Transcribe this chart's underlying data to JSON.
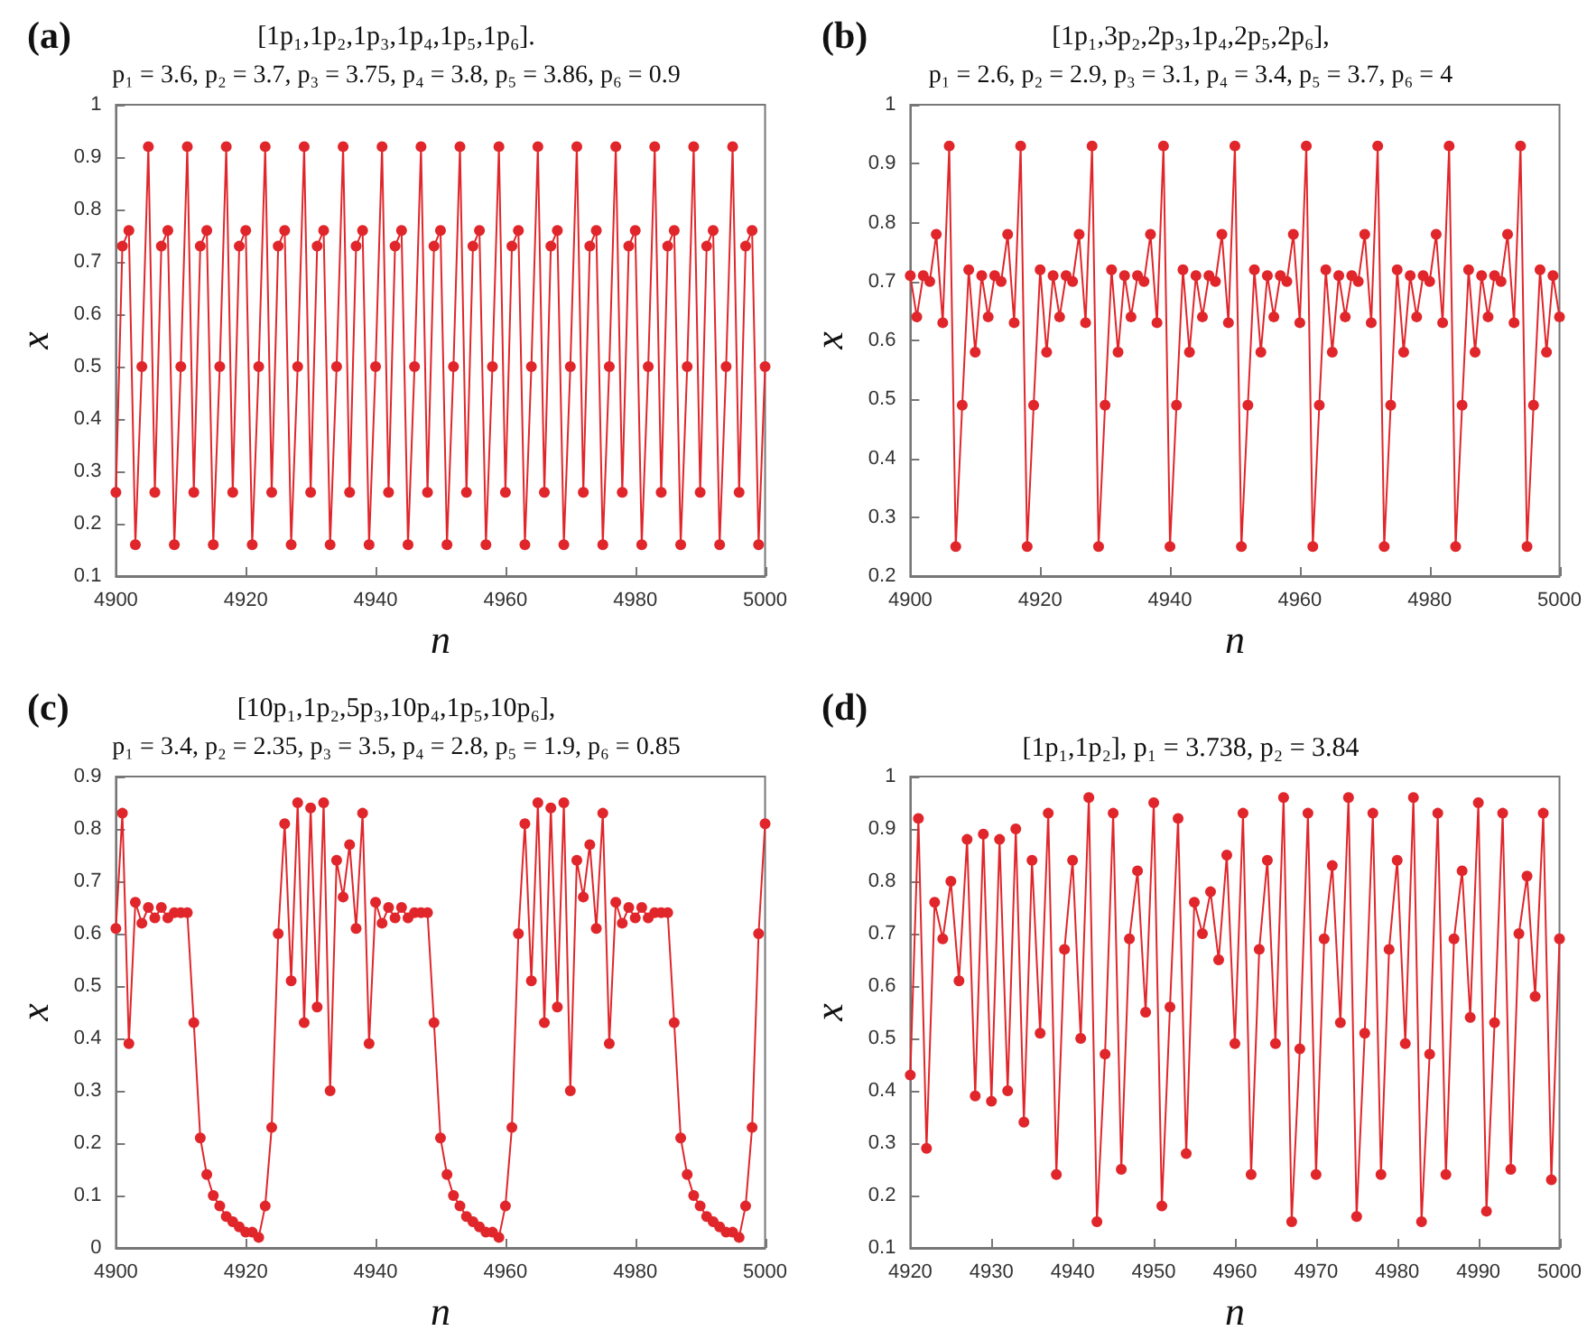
{
  "chart_data": [
    {
      "type": "line",
      "title": "[1p₁,1p₂,1p₃,1p₄,1p₅,1p₆].",
      "subtitle": "p₁ = 3.6, p₂ = 3.7, p₃ = 3.75, p₄ = 3.8, p₅ = 3.86, p₆ = 0.9",
      "xlabel": "n",
      "ylabel": "x",
      "annotations": [
        "(a)"
      ],
      "x": [
        4900,
        4901,
        4902,
        4903,
        4904,
        4905,
        4906,
        4907,
        4908,
        4909,
        4910,
        4911,
        4912,
        4913,
        4914,
        4915,
        4916,
        4917,
        4918,
        4919,
        4920,
        4921,
        4922,
        4923,
        4924,
        4925,
        4926,
        4927,
        4928,
        4929,
        4930,
        4931,
        4932,
        4933,
        4934,
        4935,
        4936,
        4937,
        4938,
        4939,
        4940,
        4941,
        4942,
        4943,
        4944,
        4945,
        4946,
        4947,
        4948,
        4949,
        4950,
        4951,
        4952,
        4953,
        4954,
        4955,
        4956,
        4957,
        4958,
        4959,
        4960,
        4961,
        4962,
        4963,
        4964,
        4965,
        4966,
        4967,
        4968,
        4969,
        4970,
        4971,
        4972,
        4973,
        4974,
        4975,
        4976,
        4977,
        4978,
        4979,
        4980,
        4981,
        4982,
        4983,
        4984,
        4985,
        4986,
        4987,
        4988,
        4989,
        4990,
        4991,
        4992,
        4993,
        4994,
        4995,
        4996,
        4997,
        4998,
        4999,
        5000
      ],
      "values": [
        0.26,
        0.73,
        0.76,
        0.16,
        0.5,
        0.92,
        0.26,
        0.73,
        0.76,
        0.16,
        0.5,
        0.92,
        0.26,
        0.73,
        0.76,
        0.16,
        0.5,
        0.92,
        0.26,
        0.73,
        0.76,
        0.16,
        0.5,
        0.92,
        0.26,
        0.73,
        0.76,
        0.16,
        0.5,
        0.92,
        0.26,
        0.73,
        0.76,
        0.16,
        0.5,
        0.92,
        0.26,
        0.73,
        0.76,
        0.16,
        0.5,
        0.92,
        0.26,
        0.73,
        0.76,
        0.16,
        0.5,
        0.92,
        0.26,
        0.73,
        0.76,
        0.16,
        0.5,
        0.92,
        0.26,
        0.73,
        0.76,
        0.16,
        0.5,
        0.92,
        0.26,
        0.73,
        0.76,
        0.16,
        0.5,
        0.92,
        0.26,
        0.73,
        0.76,
        0.16,
        0.5,
        0.92,
        0.26,
        0.73,
        0.76,
        0.16,
        0.5,
        0.92,
        0.26,
        0.73,
        0.76,
        0.16,
        0.5,
        0.92,
        0.26,
        0.73,
        0.76,
        0.16,
        0.5,
        0.92,
        0.26,
        0.73,
        0.76,
        0.16,
        0.5,
        0.92,
        0.26,
        0.73,
        0.76,
        0.16,
        0.5
      ],
      "color": "#e0262b",
      "marker": "circle",
      "line_style": "solid",
      "xlim": [
        4900,
        5000
      ],
      "xticks": [
        4900,
        4920,
        4940,
        4960,
        4980,
        5000
      ],
      "ylim": [
        0.1,
        1
      ],
      "yticks": [
        0.1,
        0.2,
        0.3,
        0.4,
        0.5,
        0.6,
        0.7,
        0.8,
        0.9,
        1
      ]
    },
    {
      "type": "line",
      "title": "[1p₁,3p₂,2p₃,1p₄,2p₅,2p₆],",
      "subtitle": "p₁ = 2.6, p₂ = 2.9, p₃ = 3.1, p₄ = 3.4, p₅ = 3.7, p₆ = 4",
      "xlabel": "n",
      "ylabel": "x",
      "annotations": [
        "(b)"
      ],
      "x": [
        4900,
        4901,
        4902,
        4903,
        4904,
        4905,
        4906,
        4907,
        4908,
        4909,
        4910,
        4911,
        4912,
        4913,
        4914,
        4915,
        4916,
        4917,
        4918,
        4919,
        4920,
        4921,
        4922,
        4923,
        4924,
        4925,
        4926,
        4927,
        4928,
        4929,
        4930,
        4931,
        4932,
        4933,
        4934,
        4935,
        4936,
        4937,
        4938,
        4939,
        4940,
        4941,
        4942,
        4943,
        4944,
        4945,
        4946,
        4947,
        4948,
        4949,
        4950,
        4951,
        4952,
        4953,
        4954,
        4955,
        4956,
        4957,
        4958,
        4959,
        4960,
        4961,
        4962,
        4963,
        4964,
        4965,
        4966,
        4967,
        4968,
        4969,
        4970,
        4971,
        4972,
        4973,
        4974,
        4975,
        4976,
        4977,
        4978,
        4979,
        4980,
        4981,
        4982,
        4983,
        4984,
        4985,
        4986,
        4987,
        4988,
        4989,
        4990,
        4991,
        4992,
        4993,
        4994,
        4995,
        4996,
        4997,
        4998,
        4999,
        5000
      ],
      "values": [
        0.71,
        0.64,
        0.71,
        0.7,
        0.78,
        0.63,
        0.93,
        0.25,
        0.49,
        0.72,
        0.58,
        0.71,
        0.64,
        0.71,
        0.7,
        0.78,
        0.63,
        0.93,
        0.25,
        0.49,
        0.72,
        0.58,
        0.71,
        0.64,
        0.71,
        0.7,
        0.78,
        0.63,
        0.93,
        0.25,
        0.49,
        0.72,
        0.58,
        0.71,
        0.64,
        0.71,
        0.7,
        0.78,
        0.63,
        0.93,
        0.25,
        0.49,
        0.72,
        0.58,
        0.71,
        0.64,
        0.71,
        0.7,
        0.78,
        0.63,
        0.93,
        0.25,
        0.49,
        0.72,
        0.58,
        0.71,
        0.64,
        0.71,
        0.7,
        0.78,
        0.63,
        0.93,
        0.25,
        0.49,
        0.72,
        0.58,
        0.71,
        0.64,
        0.71,
        0.7,
        0.78,
        0.63,
        0.93,
        0.25,
        0.49,
        0.72,
        0.58,
        0.71,
        0.64,
        0.71,
        0.7,
        0.78,
        0.63,
        0.93,
        0.25,
        0.49,
        0.72,
        0.58,
        0.71,
        0.64,
        0.71,
        0.7,
        0.78,
        0.63,
        0.93,
        0.25,
        0.49,
        0.72,
        0.58,
        0.71,
        0.64
      ],
      "color": "#e0262b",
      "marker": "circle",
      "line_style": "solid",
      "xlim": [
        4900,
        5000
      ],
      "xticks": [
        4900,
        4920,
        4940,
        4960,
        4980,
        5000
      ],
      "ylim": [
        0.2,
        1
      ],
      "yticks": [
        0.2,
        0.3,
        0.4,
        0.5,
        0.6,
        0.7,
        0.8,
        0.9,
        1
      ]
    },
    {
      "type": "line",
      "title": "[10p₁,1p₂,5p₃,10p₄,1p₅,10p₆],",
      "subtitle": "p₁ = 3.4, p₂ = 2.35, p₃ = 3.5, p₄ = 2.8, p₅ = 1.9, p₆ = 0.85",
      "xlabel": "n",
      "ylabel": "x",
      "annotations": [
        "(c)"
      ],
      "x": [
        4900,
        4901,
        4902,
        4903,
        4904,
        4905,
        4906,
        4907,
        4908,
        4909,
        4910,
        4911,
        4912,
        4913,
        4914,
        4915,
        4916,
        4917,
        4918,
        4919,
        4920,
        4921,
        4922,
        4923,
        4924,
        4925,
        4926,
        4927,
        4928,
        4929,
        4930,
        4931,
        4932,
        4933,
        4934,
        4935,
        4936,
        4937,
        4938,
        4939,
        4940,
        4941,
        4942,
        4943,
        4944,
        4945,
        4946,
        4947,
        4948,
        4949,
        4950,
        4951,
        4952,
        4953,
        4954,
        4955,
        4956,
        4957,
        4958,
        4959,
        4960,
        4961,
        4962,
        4963,
        4964,
        4965,
        4966,
        4967,
        4968,
        4969,
        4970,
        4971,
        4972,
        4973,
        4974,
        4975,
        4976,
        4977,
        4978,
        4979,
        4980,
        4981,
        4982,
        4983,
        4984,
        4985,
        4986,
        4987,
        4988,
        4989,
        4990,
        4991,
        4992,
        4993,
        4994,
        4995,
        4996,
        4997,
        4998,
        4999,
        5000
      ],
      "values": [
        0.61,
        0.83,
        0.39,
        0.66,
        0.62,
        0.65,
        0.63,
        0.65,
        0.63,
        0.64,
        0.64,
        0.64,
        0.43,
        0.21,
        0.14,
        0.1,
        0.08,
        0.06,
        0.05,
        0.04,
        0.03,
        0.03,
        0.02,
        0.08,
        0.23,
        0.6,
        0.81,
        0.51,
        0.85,
        0.43,
        0.84,
        0.46,
        0.85,
        0.3,
        0.74,
        0.67,
        0.77,
        0.61,
        0.83,
        0.39,
        0.66,
        0.62,
        0.65,
        0.63,
        0.65,
        0.63,
        0.64,
        0.64,
        0.64,
        0.43,
        0.21,
        0.14,
        0.1,
        0.08,
        0.06,
        0.05,
        0.04,
        0.03,
        0.03,
        0.02,
        0.08,
        0.23,
        0.6,
        0.81,
        0.51,
        0.85,
        0.43,
        0.84,
        0.46,
        0.85,
        0.3,
        0.74,
        0.67,
        0.77,
        0.61,
        0.83,
        0.39,
        0.66,
        0.62,
        0.65,
        0.63,
        0.65,
        0.63,
        0.64,
        0.64,
        0.64,
        0.43,
        0.21,
        0.14,
        0.1,
        0.08,
        0.06,
        0.05,
        0.04,
        0.03,
        0.03,
        0.02,
        0.08,
        0.23,
        0.6,
        0.81
      ],
      "color": "#e0262b",
      "marker": "circle",
      "line_style": "solid",
      "xlim": [
        4900,
        5000
      ],
      "xticks": [
        4900,
        4920,
        4940,
        4960,
        4980,
        5000
      ],
      "ylim": [
        0,
        0.9
      ],
      "yticks": [
        0,
        0.1,
        0.2,
        0.3,
        0.4,
        0.5,
        0.6,
        0.7,
        0.8,
        0.9
      ]
    },
    {
      "type": "line",
      "title": "[1p₁,1p₂], p₁ = 3.738, p₂ = 3.84",
      "xlabel": "n",
      "ylabel": "x",
      "annotations": [
        "(d)"
      ],
      "x": [
        4920,
        4921,
        4922,
        4923,
        4924,
        4925,
        4926,
        4927,
        4928,
        4929,
        4930,
        4931,
        4932,
        4933,
        4934,
        4935,
        4936,
        4937,
        4938,
        4939,
        4940,
        4941,
        4942,
        4943,
        4944,
        4945,
        4946,
        4947,
        4948,
        4949,
        4950,
        4951,
        4952,
        4953,
        4954,
        4955,
        4956,
        4957,
        4958,
        4959,
        4960,
        4961,
        4962,
        4963,
        4964,
        4965,
        4966,
        4967,
        4968,
        4969,
        4970,
        4971,
        4972,
        4973,
        4974,
        4975,
        4976,
        4977,
        4978,
        4979,
        4980,
        4981,
        4982,
        4983,
        4984,
        4985,
        4986,
        4987,
        4988,
        4989,
        4990,
        4991,
        4992,
        4993,
        4994,
        4995,
        4996,
        4997,
        4998,
        4999,
        5000
      ],
      "values": [
        0.43,
        0.92,
        0.29,
        0.76,
        0.69,
        0.8,
        0.61,
        0.88,
        0.39,
        0.89,
        0.38,
        0.88,
        0.4,
        0.9,
        0.34,
        0.84,
        0.51,
        0.93,
        0.24,
        0.67,
        0.84,
        0.5,
        0.96,
        0.15,
        0.47,
        0.93,
        0.25,
        0.69,
        0.82,
        0.55,
        0.95,
        0.18,
        0.56,
        0.92,
        0.28,
        0.76,
        0.7,
        0.78,
        0.65,
        0.85,
        0.49,
        0.93,
        0.24,
        0.67,
        0.84,
        0.49,
        0.96,
        0.15,
        0.48,
        0.93,
        0.24,
        0.69,
        0.83,
        0.53,
        0.96,
        0.16,
        0.51,
        0.93,
        0.24,
        0.67,
        0.84,
        0.49,
        0.96,
        0.15,
        0.47,
        0.93,
        0.24,
        0.69,
        0.82,
        0.54,
        0.95,
        0.17,
        0.53,
        0.93,
        0.25,
        0.7,
        0.81,
        0.58,
        0.93,
        0.23,
        0.69
      ],
      "color": "#e0262b",
      "marker": "circle",
      "line_style": "solid",
      "xlim": [
        4920,
        5000
      ],
      "xticks": [
        4920,
        4930,
        4940,
        4950,
        4960,
        4970,
        4980,
        4990,
        5000
      ],
      "ylim": [
        0.1,
        1
      ],
      "yticks": [
        0.1,
        0.2,
        0.3,
        0.4,
        0.5,
        0.6,
        0.7,
        0.8,
        0.9,
        1
      ]
    }
  ]
}
